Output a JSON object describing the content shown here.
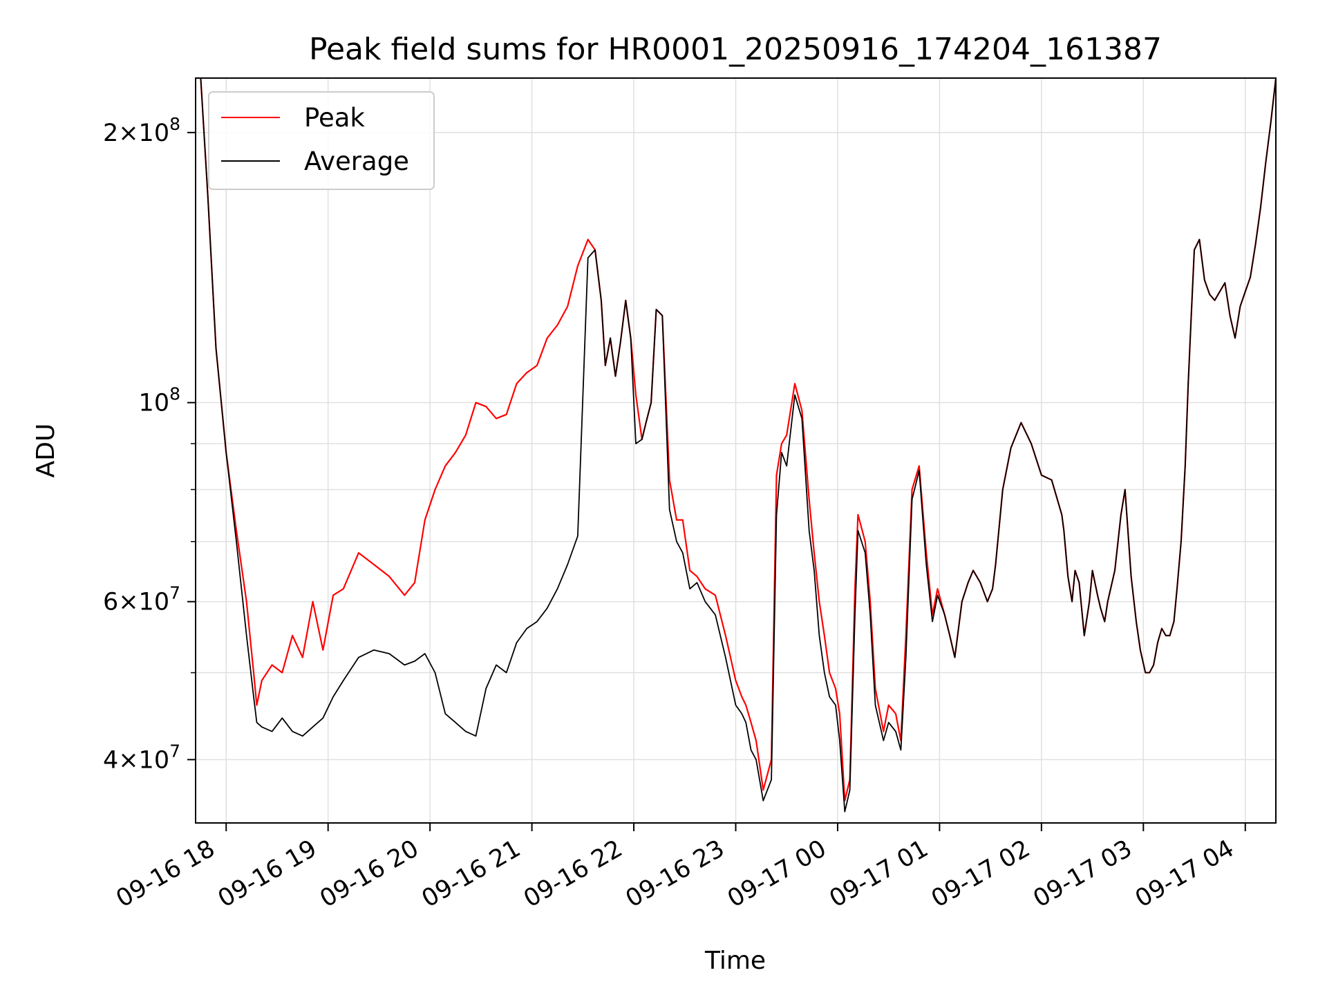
{
  "chart_data": {
    "type": "line",
    "title": "Peak field sums for HR0001_20250916_174204_161387",
    "xlabel": "Time",
    "ylabel": "ADU",
    "yscale": "log",
    "ylim": [
      34000000,
      230000000
    ],
    "xlim_hours": [
      17.7,
      28.3
    ],
    "x_ticks": [
      {
        "label": "09-16 18",
        "hour": 18
      },
      {
        "label": "09-16 19",
        "hour": 19
      },
      {
        "label": "09-16 20",
        "hour": 20
      },
      {
        "label": "09-16 21",
        "hour": 21
      },
      {
        "label": "09-16 22",
        "hour": 22
      },
      {
        "label": "09-16 23",
        "hour": 23
      },
      {
        "label": "09-17 00",
        "hour": 24
      },
      {
        "label": "09-17 01",
        "hour": 25
      },
      {
        "label": "09-17 02",
        "hour": 26
      },
      {
        "label": "09-17 03",
        "hour": 27
      },
      {
        "label": "09-17 04",
        "hour": 28
      }
    ],
    "y_ticks": [
      {
        "value": 40000000,
        "mant": "4",
        "exp": "7"
      },
      {
        "value": 60000000,
        "mant": "6",
        "exp": "7"
      },
      {
        "value": 100000000,
        "mant": "",
        "exp": "8"
      },
      {
        "value": 200000000,
        "mant": "2",
        "exp": "8"
      }
    ],
    "y_minor": [
      50000000,
      70000000,
      80000000,
      90000000
    ],
    "grid": true,
    "legend_position": "top-left",
    "colors": {
      "peak": "#ff0000",
      "average": "#000000"
    },
    "series": [
      {
        "name": "Peak",
        "color": "#ff0000",
        "hours": [
          17.7,
          17.75,
          17.82,
          17.9,
          18.0,
          18.1,
          18.2,
          18.27,
          18.3,
          18.35,
          18.45,
          18.55,
          18.65,
          18.75,
          18.85,
          18.95,
          19.05,
          19.15,
          19.3,
          19.45,
          19.6,
          19.75,
          19.85,
          19.95,
          20.05,
          20.15,
          20.25,
          20.35,
          20.45,
          20.55,
          20.65,
          20.75,
          20.85,
          20.95,
          21.05,
          21.15,
          21.25,
          21.35,
          21.45,
          21.55,
          21.62,
          21.68,
          21.72,
          21.77,
          21.82,
          21.87,
          21.92,
          21.97,
          22.02,
          22.08,
          22.12,
          22.17,
          22.22,
          22.28,
          22.35,
          22.42,
          22.48,
          22.55,
          22.62,
          22.7,
          22.8,
          22.9,
          23.0,
          23.06,
          23.1,
          23.15,
          23.2,
          23.27,
          23.35,
          23.4,
          23.45,
          23.5,
          23.58,
          23.65,
          23.72,
          23.77,
          23.82,
          23.87,
          23.92,
          23.98,
          24.02,
          24.07,
          24.12,
          24.17,
          24.2,
          24.27,
          24.32,
          24.37,
          24.45,
          24.5,
          24.57,
          24.62,
          24.67,
          24.73,
          24.8,
          24.87,
          24.93,
          24.98,
          25.05,
          25.1,
          25.15,
          25.22,
          25.28,
          25.33,
          25.4,
          25.47,
          25.52,
          25.55,
          25.62,
          25.7,
          25.8,
          25.9,
          26.0,
          26.1,
          26.2,
          26.22,
          26.26,
          26.3,
          26.33,
          26.37,
          26.42,
          26.47,
          26.5,
          26.55,
          26.58,
          26.62,
          26.65,
          26.72,
          26.78,
          26.82,
          26.88,
          26.93,
          26.97,
          27.02,
          27.06,
          27.1,
          27.14,
          27.18,
          27.22,
          27.26,
          27.3,
          27.33,
          27.37,
          27.41,
          27.44,
          27.47,
          27.5,
          27.55,
          27.6,
          27.65,
          27.7,
          27.75,
          27.8,
          27.85,
          27.9,
          27.95,
          28.0,
          28.05,
          28.1,
          28.15,
          28.2,
          28.25,
          28.3
        ],
        "values": [
          230000000,
          230000000,
          170000000,
          115000000,
          88000000,
          72000000,
          60000000,
          50000000,
          46000000,
          49000000,
          51000000,
          50000000,
          55000000,
          52000000,
          60000000,
          53000000,
          61000000,
          62000000,
          68000000,
          66000000,
          64000000,
          61000000,
          63000000,
          74000000,
          80000000,
          85000000,
          88000000,
          92000000,
          100000000,
          99000000,
          96000000,
          97000000,
          105000000,
          108000000,
          110000000,
          118000000,
          122000000,
          128000000,
          142000000,
          152000000,
          148000000,
          130000000,
          110000000,
          118000000,
          107000000,
          117000000,
          130000000,
          118000000,
          102000000,
          91000000,
          95000000,
          100000000,
          127000000,
          125000000,
          82000000,
          74000000,
          74000000,
          65000000,
          64000000,
          62000000,
          61000000,
          55000000,
          49000000,
          47000000,
          46000000,
          44000000,
          42000000,
          37000000,
          40000000,
          83000000,
          90000000,
          92000000,
          105000000,
          98000000,
          78000000,
          68000000,
          60000000,
          55000000,
          50000000,
          48000000,
          45000000,
          36000000,
          38000000,
          62000000,
          75000000,
          70000000,
          60000000,
          48000000,
          43000000,
          46000000,
          45000000,
          42000000,
          55000000,
          80000000,
          85000000,
          68000000,
          58000000,
          62000000,
          58000000,
          55000000,
          52000000,
          60000000,
          63000000,
          65000000,
          63000000,
          60000000,
          62000000,
          66000000,
          80000000,
          89000000,
          95000000,
          90000000,
          83000000,
          82000000,
          75000000,
          72000000,
          64000000,
          60000000,
          65000000,
          63000000,
          55000000,
          60000000,
          65000000,
          61000000,
          59000000,
          57000000,
          60000000,
          65000000,
          75000000,
          80000000,
          64000000,
          57000000,
          53000000,
          50000000,
          50000000,
          51000000,
          54000000,
          56000000,
          55000000,
          55000000,
          57000000,
          62000000,
          70000000,
          85000000,
          105000000,
          125000000,
          148000000,
          152000000,
          137000000,
          132000000,
          130000000,
          133000000,
          136000000,
          125000000,
          118000000,
          128000000,
          133000000,
          138000000,
          150000000,
          165000000,
          185000000,
          205000000,
          230000000
        ]
      },
      {
        "name": "Average",
        "color": "#000000",
        "hours": [
          17.7,
          17.75,
          17.82,
          17.9,
          18.0,
          18.1,
          18.2,
          18.27,
          18.3,
          18.35,
          18.45,
          18.55,
          18.65,
          18.75,
          18.85,
          18.95,
          19.05,
          19.15,
          19.3,
          19.45,
          19.6,
          19.75,
          19.85,
          19.95,
          20.05,
          20.15,
          20.25,
          20.35,
          20.45,
          20.55,
          20.65,
          20.75,
          20.85,
          20.95,
          21.05,
          21.15,
          21.25,
          21.35,
          21.45,
          21.55,
          21.62,
          21.68,
          21.72,
          21.77,
          21.82,
          21.87,
          21.92,
          21.97,
          22.02,
          22.08,
          22.12,
          22.17,
          22.22,
          22.28,
          22.35,
          22.42,
          22.48,
          22.55,
          22.62,
          22.7,
          22.8,
          22.9,
          23.0,
          23.06,
          23.1,
          23.15,
          23.2,
          23.27,
          23.35,
          23.4,
          23.45,
          23.5,
          23.58,
          23.65,
          23.72,
          23.77,
          23.82,
          23.87,
          23.92,
          23.98,
          24.02,
          24.07,
          24.12,
          24.17,
          24.2,
          24.27,
          24.32,
          24.37,
          24.45,
          24.5,
          24.57,
          24.62,
          24.67,
          24.73,
          24.8,
          24.87,
          24.93,
          24.98,
          25.05,
          25.1,
          25.15,
          25.22,
          25.28,
          25.33,
          25.4,
          25.47,
          25.52,
          25.55,
          25.62,
          25.7,
          25.8,
          25.9,
          26.0,
          26.1,
          26.2,
          26.22,
          26.26,
          26.3,
          26.33,
          26.37,
          26.42,
          26.47,
          26.5,
          26.55,
          26.58,
          26.62,
          26.65,
          26.72,
          26.78,
          26.82,
          26.88,
          26.93,
          26.97,
          27.02,
          27.06,
          27.1,
          27.14,
          27.18,
          27.22,
          27.26,
          27.3,
          27.33,
          27.37,
          27.41,
          27.44,
          27.47,
          27.5,
          27.55,
          27.6,
          27.65,
          27.7,
          27.75,
          27.8,
          27.85,
          27.9,
          27.95,
          28.0,
          28.05,
          28.1,
          28.15,
          28.2,
          28.25,
          28.3
        ],
        "values": [
          230000000,
          230000000,
          170000000,
          115000000,
          88000000,
          70000000,
          55000000,
          47000000,
          44000000,
          43500000,
          43000000,
          44500000,
          43000000,
          42500000,
          43500000,
          44500000,
          47000000,
          49000000,
          52000000,
          53000000,
          52500000,
          51000000,
          51500000,
          52500000,
          50000000,
          45000000,
          44000000,
          43000000,
          42500000,
          48000000,
          51000000,
          50000000,
          54000000,
          56000000,
          57000000,
          59000000,
          62000000,
          66000000,
          71000000,
          145000000,
          148000000,
          130000000,
          110000000,
          118000000,
          107000000,
          117000000,
          130000000,
          118000000,
          90000000,
          91000000,
          95000000,
          100000000,
          127000000,
          125000000,
          76000000,
          70000000,
          68000000,
          62000000,
          63000000,
          60000000,
          58000000,
          52000000,
          46000000,
          45000000,
          44000000,
          41000000,
          40000000,
          36000000,
          38000000,
          75000000,
          88000000,
          85000000,
          102000000,
          96000000,
          72000000,
          65000000,
          55000000,
          50000000,
          47000000,
          46000000,
          42000000,
          35000000,
          37000000,
          58000000,
          72000000,
          68000000,
          58000000,
          46000000,
          42000000,
          44000000,
          43000000,
          41000000,
          52000000,
          78000000,
          84000000,
          66000000,
          57000000,
          61000000,
          58000000,
          55000000,
          52000000,
          60000000,
          63000000,
          65000000,
          63000000,
          60000000,
          62000000,
          66000000,
          80000000,
          89000000,
          95000000,
          90000000,
          83000000,
          82000000,
          75000000,
          72000000,
          64000000,
          60000000,
          65000000,
          63000000,
          55000000,
          60000000,
          65000000,
          61000000,
          59000000,
          57000000,
          60000000,
          65000000,
          75000000,
          80000000,
          64000000,
          57000000,
          53000000,
          50000000,
          50000000,
          51000000,
          54000000,
          56000000,
          55000000,
          55000000,
          57000000,
          62000000,
          70000000,
          85000000,
          105000000,
          125000000,
          148000000,
          152000000,
          137000000,
          132000000,
          130000000,
          133000000,
          136000000,
          125000000,
          118000000,
          128000000,
          133000000,
          138000000,
          150000000,
          165000000,
          185000000,
          205000000,
          230000000
        ]
      }
    ]
  }
}
